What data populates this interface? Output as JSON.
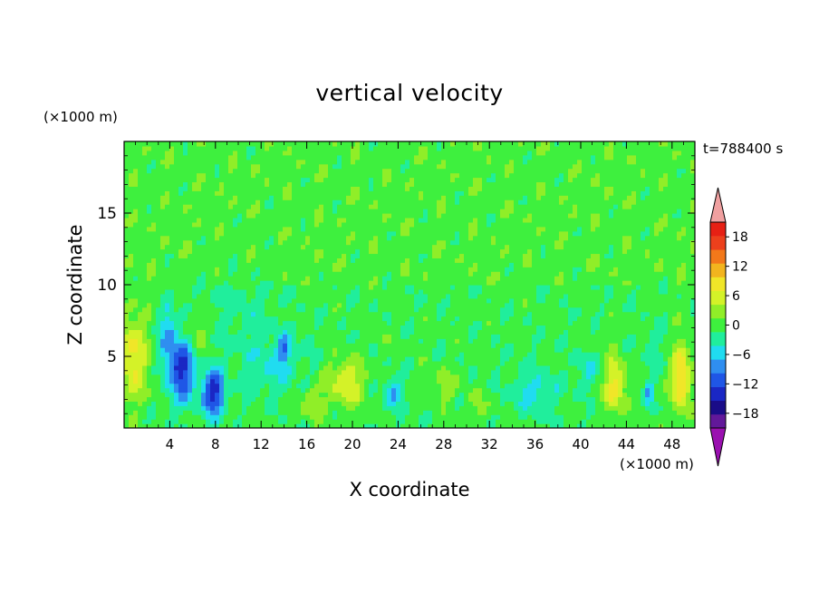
{
  "chart_data": {
    "type": "heatmap",
    "title": "vertical velocity",
    "xlabel": "X coordinate",
    "ylabel": "Z coordinate",
    "x_unit": "(×1000 m)",
    "y_unit": "(×1000 m)",
    "time_label": "t=788400 s",
    "xlim": [
      0,
      50
    ],
    "ylim": [
      0,
      20
    ],
    "x_ticks": [
      4,
      8,
      12,
      16,
      20,
      24,
      28,
      32,
      36,
      40,
      44,
      48
    ],
    "y_ticks": [
      5,
      10,
      15
    ],
    "colorbar": {
      "tick_labels": [
        "18",
        "12",
        "6",
        "0",
        "−6",
        "−12",
        "−18"
      ],
      "tick_values": [
        18,
        12,
        6,
        0,
        -6,
        -12,
        -18
      ],
      "levels": [
        -21,
        -18,
        -15,
        -12,
        -9,
        -6,
        -3,
        0,
        3,
        6,
        9,
        12,
        15,
        18,
        21
      ],
      "colors": [
        "#62189a",
        "#1a0c88",
        "#1a27c4",
        "#1f56e6",
        "#2f8ef0",
        "#20dcf0",
        "#20ee9c",
        "#3ef03e",
        "#90ee28",
        "#d4f228",
        "#f0e628",
        "#f2b41e",
        "#f2781a",
        "#ec401c",
        "#e62014"
      ],
      "over_color": "#f0a0a0",
      "under_color": "#9a10b0"
    },
    "features": [
      {
        "x": 0.8,
        "z": 5.0,
        "w": 9,
        "sx": 1.3,
        "sz": 3.0
      },
      {
        "x": 5.0,
        "z": 4.0,
        "w": -15,
        "sx": 1.1,
        "sz": 2.0
      },
      {
        "x": 3.8,
        "z": 6.5,
        "w": -7,
        "sx": 0.8,
        "sz": 1.8
      },
      {
        "x": 7.8,
        "z": 2.5,
        "w": -15,
        "sx": 1.0,
        "sz": 1.6
      },
      {
        "x": 6.5,
        "z": 7.0,
        "w": 4,
        "sx": 0.7,
        "sz": 1.6
      },
      {
        "x": 14.0,
        "z": 5.5,
        "w": -8,
        "sx": 0.5,
        "sz": 1.0
      },
      {
        "x": 13.0,
        "z": 4.5,
        "w": -4,
        "sx": 2.5,
        "sz": 2.0
      },
      {
        "x": 16.5,
        "z": 1.8,
        "w": 5,
        "sx": 1.0,
        "sz": 1.2
      },
      {
        "x": 19.5,
        "z": 3.2,
        "w": 8,
        "sx": 1.5,
        "sz": 1.6
      },
      {
        "x": 23.5,
        "z": 2.5,
        "w": -7,
        "sx": 0.8,
        "sz": 1.2
      },
      {
        "x": 22.5,
        "z": 6.5,
        "w": 3,
        "sx": 0.5,
        "sz": 1.0
      },
      {
        "x": 28.0,
        "z": 3.0,
        "w": 4,
        "sx": 1.2,
        "sz": 1.2
      },
      {
        "x": 31.0,
        "z": 1.5,
        "w": 3,
        "sx": 1.0,
        "sz": 1.0
      },
      {
        "x": 36.0,
        "z": 2.5,
        "w": -5,
        "sx": 2.0,
        "sz": 1.5
      },
      {
        "x": 40.5,
        "z": 4.0,
        "w": -4,
        "sx": 1.0,
        "sz": 1.2
      },
      {
        "x": 43.0,
        "z": 3.0,
        "w": 10,
        "sx": 0.9,
        "sz": 2.0
      },
      {
        "x": 46.0,
        "z": 2.5,
        "w": -7,
        "sx": 0.4,
        "sz": 1.0
      },
      {
        "x": 48.8,
        "z": 3.5,
        "w": 12,
        "sx": 0.8,
        "sz": 2.5
      },
      {
        "x": 46.5,
        "z": 6.0,
        "w": -2,
        "sx": 1.0,
        "sz": 1.5
      },
      {
        "x": 10.0,
        "z": 8.5,
        "w": -2,
        "sx": 3.5,
        "sz": 2.5
      }
    ]
  }
}
